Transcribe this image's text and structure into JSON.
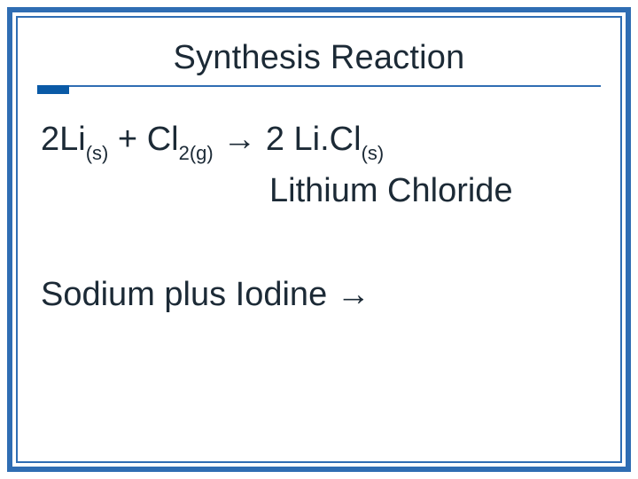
{
  "colors": {
    "border_outer": "#2f6db3",
    "border_inner": "#2f6db3",
    "title_text": "#1c2a36",
    "body_text": "#1c2a36",
    "underline": "#2f6db3",
    "accent": "#0a5aa6",
    "background": "#ffffff"
  },
  "slide": {
    "title": "Synthesis Reaction",
    "equation": {
      "coef1": "2",
      "elem1": "Li",
      "sub1": "(s)",
      "plus": " + ",
      "elem2": "Cl",
      "sub2": "2(g)",
      "arrow": " → ",
      "coef2": "2 ",
      "prod": "Li.Cl",
      "sub3": "(s)"
    },
    "product_name": "Lithium Chloride",
    "prompt_text": "Sodium plus Iodine ",
    "prompt_arrow": "→"
  }
}
